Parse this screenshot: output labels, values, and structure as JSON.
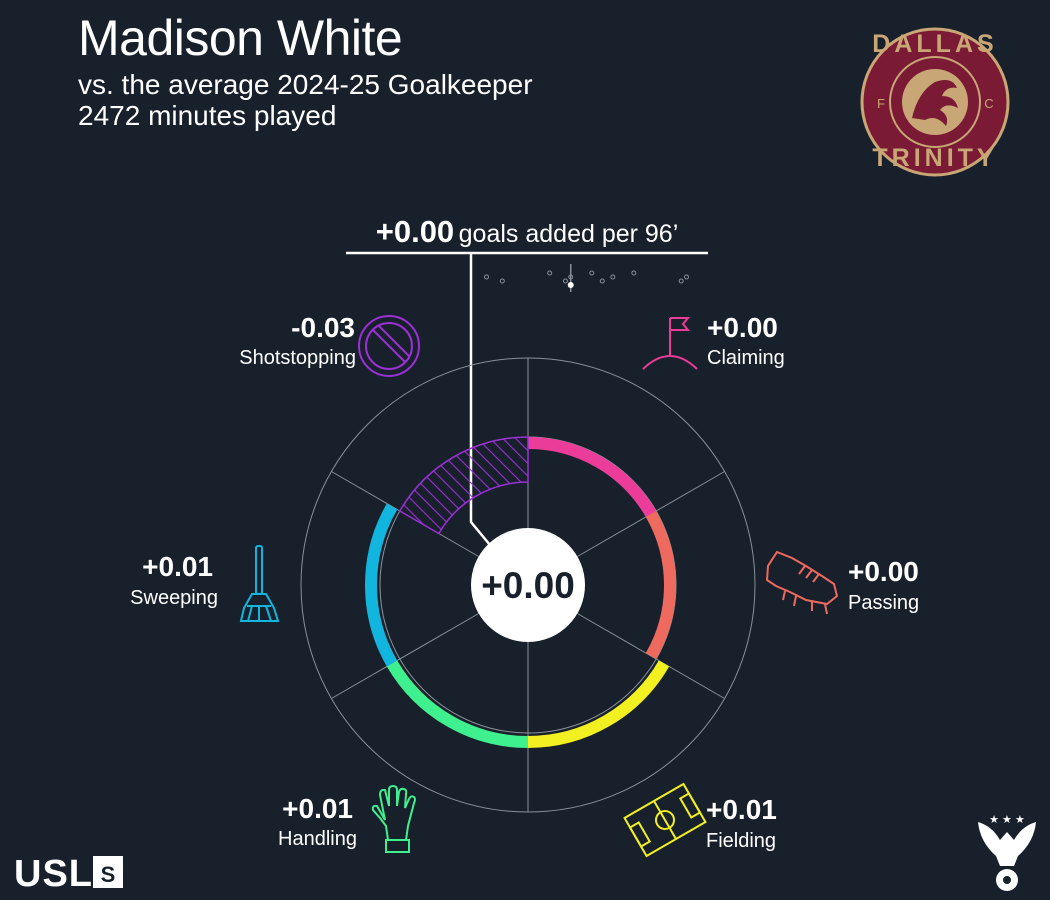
{
  "header": {
    "title": "Madison White",
    "subtitle": "vs. the average 2024-25 Goalkeeper",
    "minutes": "2472 minutes played"
  },
  "summary": {
    "value": "+0.00",
    "unit_label": "goals added per 96’",
    "center_value": "+0.00"
  },
  "team_logo": {
    "top_text": "DALLAS",
    "bottom_text": "TRINITY",
    "letter_left": "F",
    "letter_right": "C",
    "color_outer": "#7a1a34",
    "color_ring": "#c8a675"
  },
  "league_logo": {
    "text": "USL",
    "badge": "S"
  },
  "chart_data": {
    "type": "radial-bar",
    "title": "+0.00 goals added per 96’",
    "center_value": "+0.00",
    "categories": [
      "Claiming",
      "Passing",
      "Fielding",
      "Handling",
      "Sweeping",
      "Shotstopping"
    ],
    "values": [
      0.0,
      0.0,
      0.01,
      0.01,
      0.01,
      -0.03
    ],
    "value_labels": [
      "+0.00",
      "+0.00",
      "+0.01",
      "+0.01",
      "+0.01",
      "-0.03"
    ],
    "colors": [
      "#ec3c9a",
      "#ef6a5e",
      "#f2f020",
      "#3ff08e",
      "#12b5de",
      "#9b30d6"
    ],
    "icons": [
      "corner-flag-icon",
      "boot-icon",
      "pitch-icon",
      "glove-icon",
      "broom-icon",
      "no-entry-icon"
    ],
    "total_distribution": [
      -0.08,
      -0.065,
      -0.02,
      -0.005,
      0.0,
      0.02,
      0.03,
      0.04,
      0.06,
      0.105,
      0.11
    ],
    "total_value": 0.0,
    "total_range": [
      -0.09,
      0.12
    ]
  }
}
